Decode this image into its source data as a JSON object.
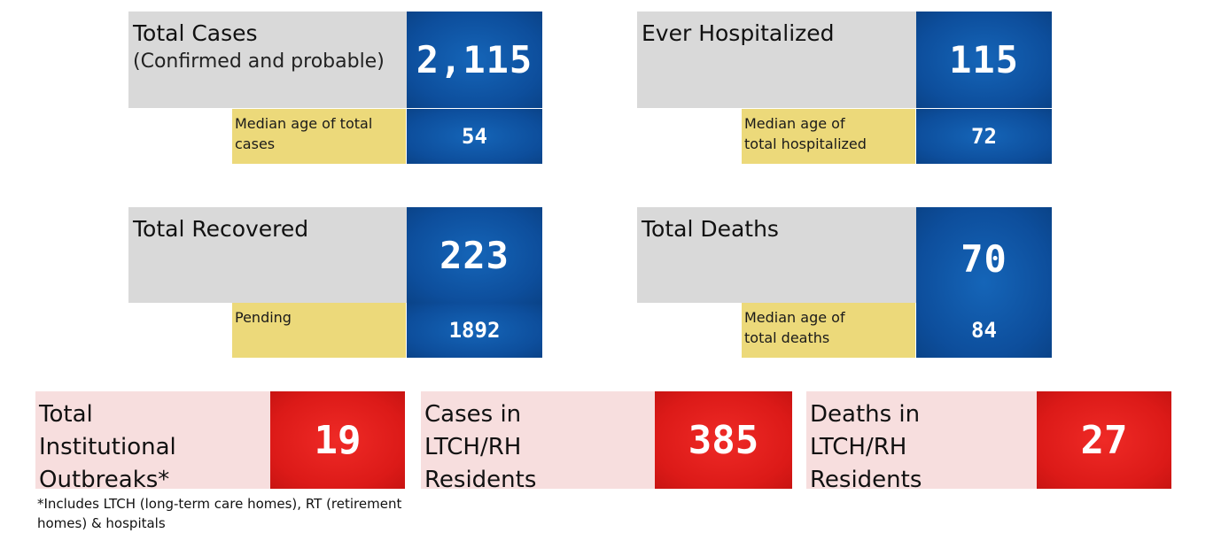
{
  "total_cases": {
    "title": "Total Cases",
    "subtitle": "(Confirmed and probable)",
    "value": "2,115",
    "sub_label": "Median age of total cases",
    "sub_value": "54"
  },
  "ever_hospitalized": {
    "title": "Ever Hospitalized",
    "value": "115",
    "sub_label": "Median age of total hospitalized",
    "sub_value": "72"
  },
  "total_recovered": {
    "title": "Total Recovered",
    "value": "223",
    "sub_label": "Pending",
    "sub_value": "1892"
  },
  "total_deaths": {
    "title": "Total Deaths",
    "value": "70",
    "sub_label": "Median age of total deaths",
    "sub_value": "84"
  },
  "institutional_outbreaks": {
    "title": "Total Institutional Outbreaks*",
    "value": "19"
  },
  "ltch_cases": {
    "title": "Cases in LTCH/RH Residents",
    "value": "385"
  },
  "ltch_deaths": {
    "title": "Deaths in LTCH/RH Residents",
    "value": "27"
  },
  "footnote": "*Includes LTCH (long-term care homes), RT (retirement homes) & hospitals",
  "colors": {
    "blue": "#0d4e9c",
    "red": "#dc1a18",
    "gray": "#d9d9d9",
    "yellow": "#ecd97a",
    "pink": "#f7dede"
  }
}
